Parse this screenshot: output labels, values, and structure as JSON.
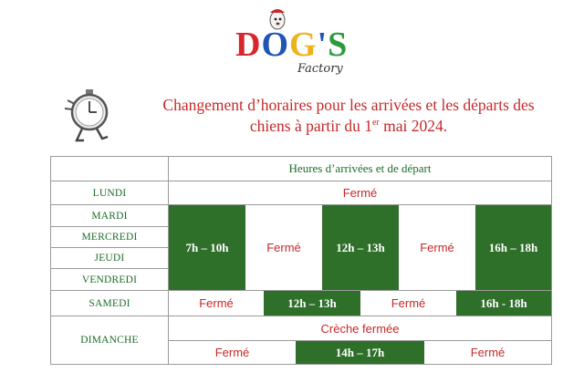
{
  "logo": {
    "letters": [
      "D",
      "O",
      "G",
      "'",
      "S"
    ],
    "sub": "Factory",
    "colors": {
      "red": "#d7262e",
      "blue": "#1f55b5",
      "yellow": "#efb21c",
      "green": "#2b9a3b"
    }
  },
  "title": {
    "line1": "Changement d’horaires pour les arrivées et les départs des",
    "line2_pre": "chiens à partir du 1",
    "line2_sup": "er",
    "line2_post": " mai 2024."
  },
  "table": {
    "header": "Heures d’arrivées et de départ",
    "days": {
      "lundi": "LUNDI",
      "mardi": "MARDI",
      "mercredi": "MERCREDI",
      "jeudi": "JEUDI",
      "vendredi": "VENDREDI",
      "samedi": "SAMEDI",
      "dimanche": "DIMANCHE"
    },
    "lundi": {
      "closed": "Fermé"
    },
    "weekdays": [
      "7h – 10h",
      "Fermé",
      "12h – 13h",
      "Fermé",
      "16h – 18h"
    ],
    "samedi": [
      "Fermé",
      "12h – 13h",
      "Fermé",
      "16h - 18h"
    ],
    "dimanche": {
      "note": "Crèche fermée",
      "slots": [
        "Fermé",
        "14h – 17h",
        "Fermé"
      ]
    }
  },
  "colors": {
    "green": "#2e6f2a",
    "red_text": "#c62828",
    "day_text": "#1d6d2a"
  }
}
